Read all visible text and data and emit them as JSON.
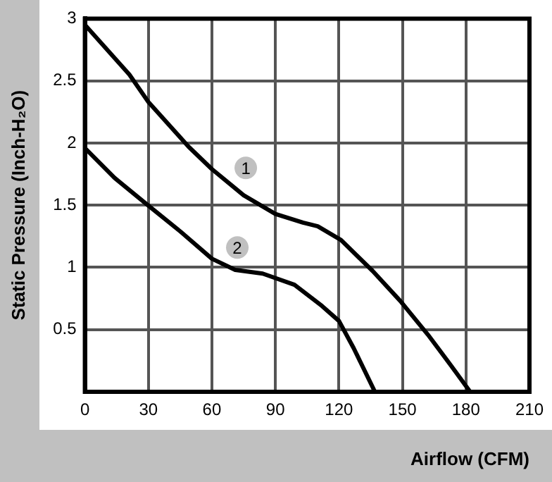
{
  "chart_data": {
    "type": "line",
    "xlabel": "Airflow (CFM)",
    "ylabel": "Static Pressure (Inch-H₂O)",
    "xlim": [
      0,
      210
    ],
    "xticks": [
      0,
      30,
      60,
      90,
      120,
      150,
      180,
      210
    ],
    "ylim": [
      0,
      3
    ],
    "yticks": [
      {
        "value": 0,
        "label": null
      },
      0.5,
      1,
      1.5,
      2,
      2.5,
      3
    ],
    "grid": true,
    "legend": false,
    "marker": "none",
    "line_style": "solid",
    "series": [
      {
        "color": "#000000",
        "x": [
          0,
          21,
          30,
          49,
          60,
          75,
          90,
          103,
          110,
          121,
          136,
          149,
          162,
          173,
          182
        ],
        "values": [
          2.95,
          2.55,
          2.33,
          1.97,
          1.79,
          1.58,
          1.43,
          1.36,
          1.33,
          1.22,
          0.97,
          0.73,
          0.46,
          0.21,
          0
        ]
      },
      {
        "color": "#000000",
        "x": [
          0,
          14,
          29,
          45,
          60,
          71,
          84,
          99,
          112,
          120,
          127,
          137
        ],
        "values": [
          1.96,
          1.72,
          1.51,
          1.29,
          1.07,
          0.98,
          0.95,
          0.86,
          0.69,
          0.57,
          0.35,
          0
        ]
      }
    ],
    "annotations": [
      {
        "text": "1",
        "x": 76,
        "y": 1.8
      },
      {
        "text": "2",
        "x": 72,
        "y": 1.16
      }
    ]
  }
}
